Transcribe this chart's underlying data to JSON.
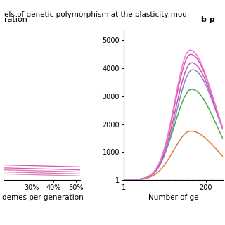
{
  "title": "els of genetic polymorphism at the plasticity mod",
  "panel_a_label": "ration",
  "panel_b_label": "b p",
  "xlabel_a": "demes per generation",
  "xlabel_b": "Number of ge",
  "panel_a_xlabel_ticks": [
    "30%",
    "40%",
    "50%"
  ],
  "panel_a_xlabel_tick_vals": [
    0.3,
    0.4,
    0.5
  ],
  "panel_b_yticks": [
    1,
    1000,
    2000,
    3000,
    4000,
    5000
  ],
  "panel_b_ytick_labels": [
    "1",
    "1000",
    "2000",
    "3000",
    "4000",
    "5000"
  ],
  "colors_b": [
    "#e07b39",
    "#4aaa4a",
    "#8888cc",
    "#cc55aa",
    "#e055bb",
    "#ee77cc"
  ],
  "colors_a": [
    "#cc55aa",
    "#dd55aa",
    "#ee66bb",
    "#dd77aa",
    "#cc88bb"
  ],
  "background_color": "#ffffff",
  "dashed_color": "#5599bb"
}
